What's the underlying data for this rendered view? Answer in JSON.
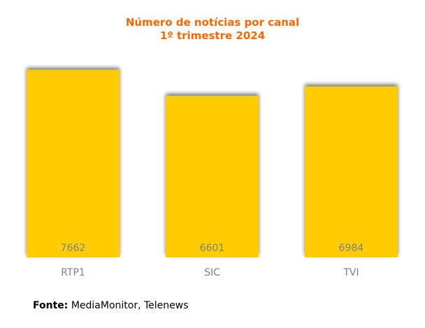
{
  "chart_data": {
    "type": "bar",
    "title": "Número de notícias por canal",
    "subtitle": "1º trimestre 2024",
    "categories": [
      "RTP1",
      "SIC",
      "TVI"
    ],
    "values": [
      7662,
      6601,
      6984
    ],
    "data_labels": [
      "7662",
      "6601",
      "6984"
    ],
    "xlabel": "",
    "ylabel": "",
    "ylim": [
      0,
      9000
    ],
    "grid": false,
    "y_axis_visible": false,
    "legend": "none",
    "colors": {
      "bar": "#ffcc00",
      "title": "#ff6600",
      "labels": "#808080",
      "shadow": "#999999"
    }
  },
  "source": {
    "label": "Fonte:",
    "text": "MediaMonitor, Telenews"
  }
}
